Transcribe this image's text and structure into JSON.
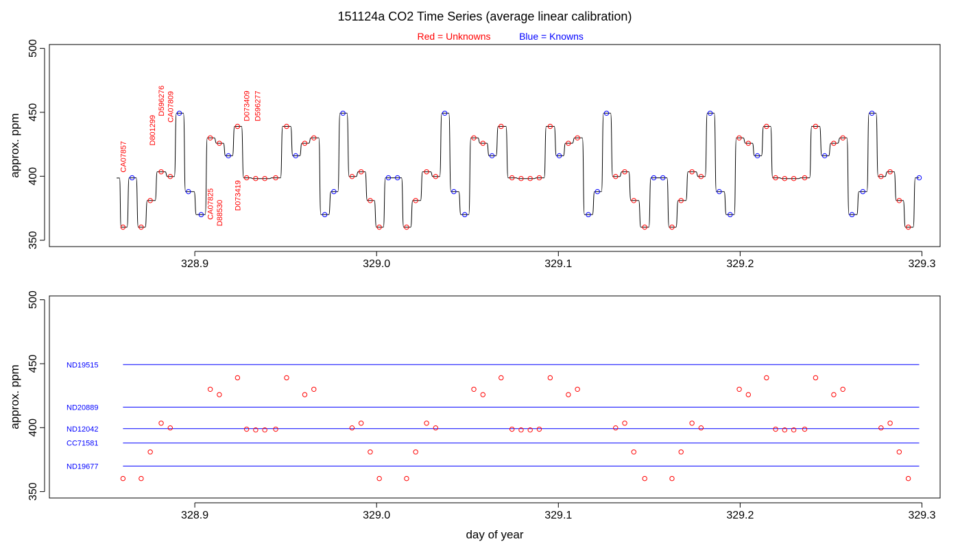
{
  "title": "151124a   CO2 Time Series (average linear calibration)",
  "legend": {
    "red": {
      "text": "Red = Unknowns",
      "color": "#ff0000"
    },
    "blue": {
      "text": "Blue = Knowns",
      "color": "#0000ff"
    }
  },
  "colors": {
    "unknown": "#ff0000",
    "known": "#0000ff",
    "trace": "#000000"
  },
  "chart_data": [
    {
      "type": "line",
      "title": "",
      "xlabel": "",
      "ylabel": "approx. ppm",
      "xlim": [
        328.82,
        329.31
      ],
      "ylim": [
        345,
        503
      ],
      "xticks": [
        328.9,
        329.0,
        329.1,
        329.2,
        329.3
      ],
      "xtick_labels": [
        "328.9",
        "329.0",
        "329.1",
        "329.2",
        "329.3"
      ],
      "yticks": [
        350,
        400,
        450,
        500
      ],
      "ytick_labels": [
        "350",
        "400",
        "450",
        "500"
      ],
      "grid": false,
      "trace_start": {
        "x": 328.857,
        "y": 398.6
      },
      "series": [
        {
          "name": "Unknowns",
          "color": "#ff0000",
          "points": [
            {
              "x": 328.8605,
              "y": 360.2
            },
            {
              "x": 328.8705,
              "y": 360.2
            },
            {
              "x": 328.8755,
              "y": 381.0
            },
            {
              "x": 328.8815,
              "y": 403.5
            },
            {
              "x": 328.8865,
              "y": 399.8
            },
            {
              "x": 328.9085,
              "y": 430.0
            },
            {
              "x": 328.9135,
              "y": 425.8
            },
            {
              "x": 328.9235,
              "y": 439.0
            },
            {
              "x": 328.9285,
              "y": 398.8
            },
            {
              "x": 328.9335,
              "y": 398.2
            },
            {
              "x": 328.9385,
              "y": 398.2
            },
            {
              "x": 328.9445,
              "y": 398.8
            },
            {
              "x": 328.9505,
              "y": 439.0
            },
            {
              "x": 328.9605,
              "y": 425.8
            },
            {
              "x": 328.9655,
              "y": 430.0
            },
            {
              "x": 328.9865,
              "y": 399.8
            },
            {
              "x": 328.9915,
              "y": 403.5
            },
            {
              "x": 328.9965,
              "y": 381.0
            },
            {
              "x": 329.0015,
              "y": 360.2
            },
            {
              "x": 329.0165,
              "y": 360.2
            },
            {
              "x": 329.0215,
              "y": 381.0
            },
            {
              "x": 329.0275,
              "y": 403.5
            },
            {
              "x": 329.0325,
              "y": 399.8
            },
            {
              "x": 329.0535,
              "y": 430.0
            },
            {
              "x": 329.0585,
              "y": 425.8
            },
            {
              "x": 329.0685,
              "y": 439.0
            },
            {
              "x": 329.0745,
              "y": 398.8
            },
            {
              "x": 329.0795,
              "y": 398.2
            },
            {
              "x": 329.0845,
              "y": 398.2
            },
            {
              "x": 329.0895,
              "y": 398.8
            },
            {
              "x": 329.0955,
              "y": 439.0
            },
            {
              "x": 329.1055,
              "y": 425.8
            },
            {
              "x": 329.1105,
              "y": 430.0
            },
            {
              "x": 329.1315,
              "y": 399.8
            },
            {
              "x": 329.1365,
              "y": 403.5
            },
            {
              "x": 329.1415,
              "y": 381.0
            },
            {
              "x": 329.1475,
              "y": 360.2
            },
            {
              "x": 329.1625,
              "y": 360.2
            },
            {
              "x": 329.1675,
              "y": 381.0
            },
            {
              "x": 329.1735,
              "y": 403.5
            },
            {
              "x": 329.1785,
              "y": 399.8
            },
            {
              "x": 329.1995,
              "y": 430.0
            },
            {
              "x": 329.2045,
              "y": 425.8
            },
            {
              "x": 329.2145,
              "y": 439.0
            },
            {
              "x": 329.2195,
              "y": 398.8
            },
            {
              "x": 329.2245,
              "y": 398.2
            },
            {
              "x": 329.2295,
              "y": 398.2
            },
            {
              "x": 329.2355,
              "y": 398.8
            },
            {
              "x": 329.2415,
              "y": 439.0
            },
            {
              "x": 329.2515,
              "y": 425.8
            },
            {
              "x": 329.2565,
              "y": 430.0
            },
            {
              "x": 329.2775,
              "y": 399.8
            },
            {
              "x": 329.2825,
              "y": 403.5
            },
            {
              "x": 329.2875,
              "y": 381.0
            },
            {
              "x": 329.2925,
              "y": 360.2
            }
          ]
        },
        {
          "name": "Knowns",
          "color": "#0000ff",
          "points": [
            {
              "x": 328.8655,
              "y": 398.8
            },
            {
              "x": 328.8915,
              "y": 449.3
            },
            {
              "x": 328.8965,
              "y": 388.0
            },
            {
              "x": 328.9035,
              "y": 370.0
            },
            {
              "x": 328.9185,
              "y": 416.0
            },
            {
              "x": 328.9555,
              "y": 416.0
            },
            {
              "x": 328.9715,
              "y": 370.0
            },
            {
              "x": 328.9765,
              "y": 388.0
            },
            {
              "x": 328.9815,
              "y": 449.3
            },
            {
              "x": 329.0065,
              "y": 398.8
            },
            {
              "x": 329.0115,
              "y": 398.8
            },
            {
              "x": 329.0375,
              "y": 449.3
            },
            {
              "x": 329.0425,
              "y": 388.0
            },
            {
              "x": 329.0485,
              "y": 370.0
            },
            {
              "x": 329.0635,
              "y": 416.0
            },
            {
              "x": 329.1005,
              "y": 416.0
            },
            {
              "x": 329.1165,
              "y": 370.0
            },
            {
              "x": 329.1215,
              "y": 388.0
            },
            {
              "x": 329.1265,
              "y": 449.3
            },
            {
              "x": 329.1525,
              "y": 398.8
            },
            {
              "x": 329.1575,
              "y": 398.8
            },
            {
              "x": 329.1835,
              "y": 449.3
            },
            {
              "x": 329.1885,
              "y": 388.0
            },
            {
              "x": 329.1945,
              "y": 370.0
            },
            {
              "x": 329.2095,
              "y": 416.0
            },
            {
              "x": 329.2465,
              "y": 416.0
            },
            {
              "x": 329.2615,
              "y": 370.0
            },
            {
              "x": 329.2675,
              "y": 388.0
            },
            {
              "x": 329.2725,
              "y": 449.3
            },
            {
              "x": 329.2985,
              "y": 398.8
            }
          ]
        }
      ],
      "annotations": [
        {
          "text": "CA07857",
          "x": 328.8605,
          "y": 403,
          "color": "#ff0000"
        },
        {
          "text": "D801299",
          "x": 328.8765,
          "y": 424,
          "color": "#ff0000"
        },
        {
          "text": "D596276",
          "x": 328.8815,
          "y": 447,
          "color": "#ff0000"
        },
        {
          "text": "CA07809",
          "x": 328.8865,
          "y": 442,
          "color": "#ff0000"
        },
        {
          "text": "CA07825",
          "x": 328.9085,
          "y": 366,
          "color": "#ff0000"
        },
        {
          "text": "D88530",
          "x": 328.9135,
          "y": 361,
          "color": "#ff0000"
        },
        {
          "text": "D073419",
          "x": 328.9235,
          "y": 373,
          "color": "#ff0000"
        },
        {
          "text": "D073409",
          "x": 328.9285,
          "y": 443,
          "color": "#ff0000"
        },
        {
          "text": "D596277",
          "x": 328.9345,
          "y": 443,
          "color": "#ff0000"
        }
      ]
    },
    {
      "type": "scatter",
      "title": "",
      "xlabel": "day of year",
      "ylabel": "approx. ppm",
      "xlim": [
        328.82,
        329.31
      ],
      "ylim": [
        345,
        503
      ],
      "xticks": [
        328.9,
        329.0,
        329.1,
        329.2,
        329.3
      ],
      "xtick_labels": [
        "328.9",
        "329.0",
        "329.1",
        "329.2",
        "329.3"
      ],
      "yticks": [
        350,
        400,
        450,
        500
      ],
      "ytick_labels": [
        "350",
        "400",
        "450",
        "500"
      ],
      "grid": false,
      "reference_lines": [
        {
          "name": "ND19515",
          "y": 449.3,
          "x_from": 328.8605,
          "x_to": 329.2985,
          "color": "#0000ff"
        },
        {
          "name": "ND20889",
          "y": 416.0,
          "x_from": 328.8605,
          "x_to": 329.2985,
          "color": "#0000ff"
        },
        {
          "name": "ND12042",
          "y": 399.2,
          "x_from": 328.8605,
          "x_to": 329.2985,
          "color": "#0000ff"
        },
        {
          "name": "CC71581",
          "y": 388.0,
          "x_from": 328.8605,
          "x_to": 329.2985,
          "color": "#0000ff"
        },
        {
          "name": "ND19677",
          "y": 370.0,
          "x_from": 328.8605,
          "x_to": 329.2985,
          "color": "#0000ff"
        }
      ],
      "series": [
        {
          "name": "Unknowns",
          "color": "#ff0000",
          "from_panel": 0
        }
      ]
    }
  ]
}
